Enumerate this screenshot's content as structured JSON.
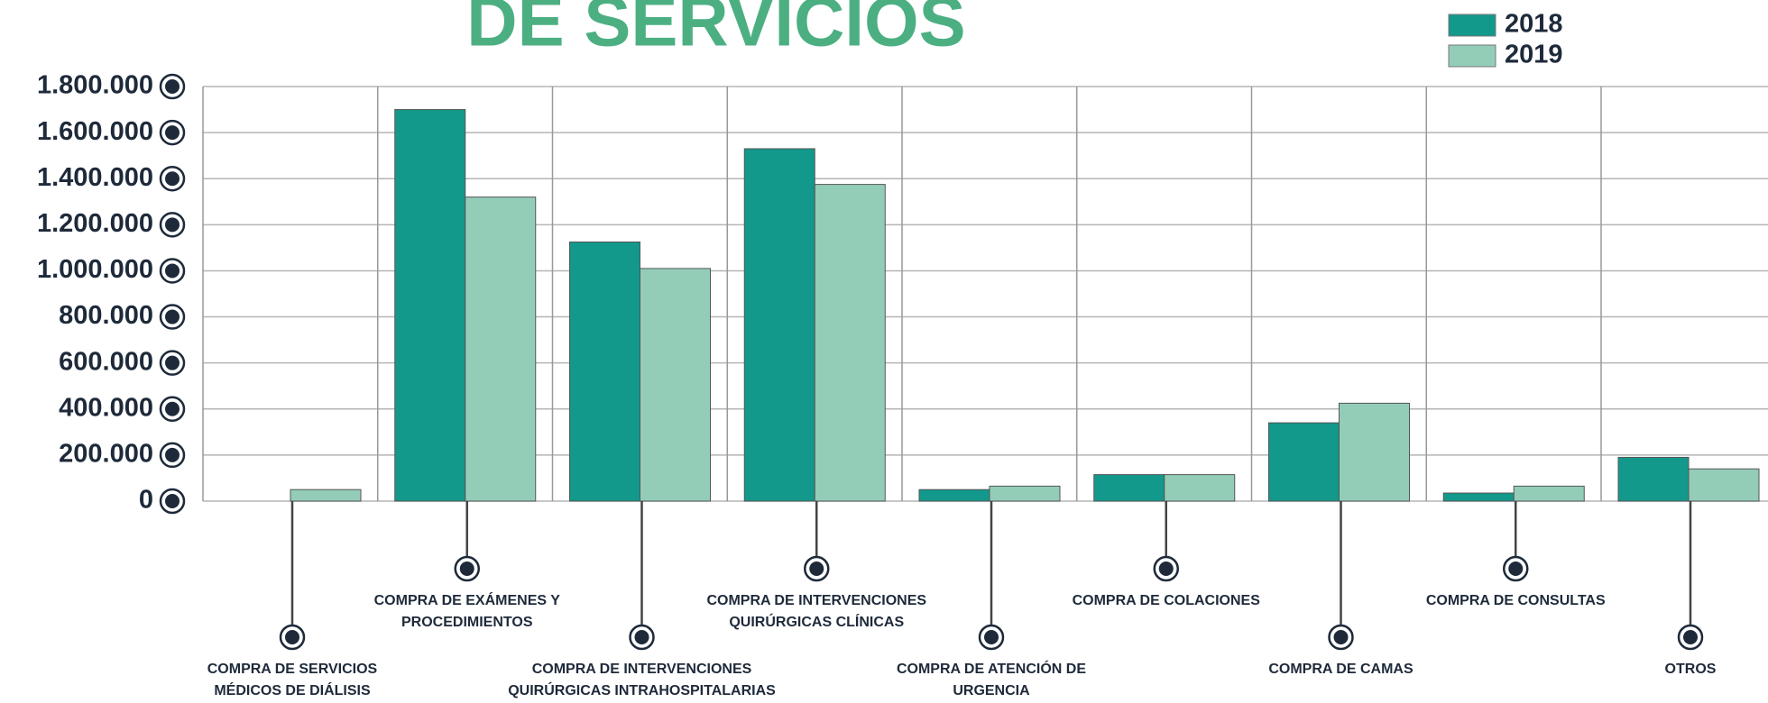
{
  "chart_data": {
    "type": "bar",
    "title": "DE SERVICIOS",
    "categories": [
      "COMPRA DE SERVICIOS MÉDICOS DE DIÁLISIS",
      "COMPRA DE EXÁMENES Y PROCEDIMIENTOS",
      "COMPRA DE INTERVENCIONES QUIRÚRGICAS INTRAHOSPITALARIAS",
      "COMPRA DE INTERVENCIONES QUIRÚRGICAS CLÍNICAS",
      "COMPRA DE ATENCIÓN DE URGENCIA",
      "COMPRA DE COLACIONES",
      "COMPRA DE CAMAS",
      "COMPRA DE CONSULTAS",
      "OTROS"
    ],
    "series": [
      {
        "name": "2018",
        "color": "#12998c",
        "values": [
          0,
          1700000,
          1125000,
          1530000,
          50000,
          115000,
          340000,
          35000,
          190000
        ]
      },
      {
        "name": "2019",
        "color": "#93cdb8",
        "values": [
          50000,
          1320000,
          1010000,
          1375000,
          65000,
          115000,
          425000,
          65000,
          140000
        ]
      }
    ],
    "ylim": [
      0,
      1800000
    ],
    "yticks": [
      0,
      {
        "value": 200000,
        "label": "200.000"
      },
      {
        "value": 400000,
        "label": "400.000"
      },
      {
        "value": 600000,
        "label": "600.000"
      },
      {
        "value": 800000,
        "label": "800.000"
      },
      {
        "value": 1000000,
        "label": "1.000.000"
      },
      {
        "value": 1200000,
        "label": "1.200.000"
      },
      {
        "value": 1400000,
        "label": "1.400.000"
      },
      {
        "value": 1600000,
        "label": "1.600.000"
      },
      {
        "value": 1800000,
        "label": "1.800.000"
      }
    ],
    "grid": true,
    "legend": "top-right"
  }
}
